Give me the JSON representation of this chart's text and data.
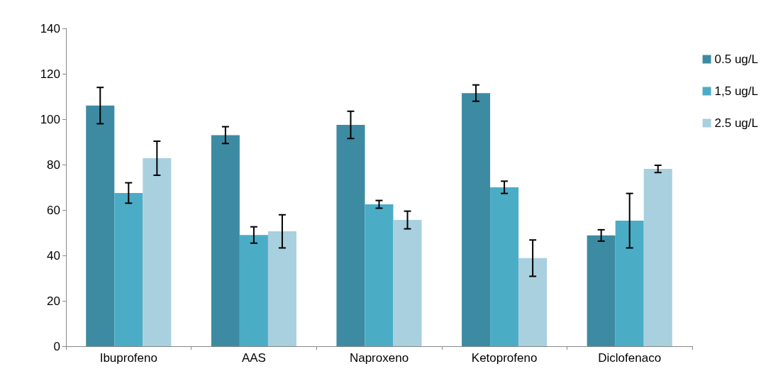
{
  "chart_data": {
    "type": "bar",
    "categories": [
      "Ibuprofeno",
      "AAS",
      "Naproxeno",
      "Ketoprofeno",
      "Diclofenaco"
    ],
    "series": [
      {
        "name": "0.5 ug/L",
        "color": "#3d8ba3",
        "values": [
          106,
          93,
          97.5,
          111.5,
          48.8
        ],
        "errors": [
          8,
          3.7,
          6,
          3.6,
          2.5
        ]
      },
      {
        "name": "1,5 ug/L",
        "color": "#4bacc6",
        "values": [
          67.5,
          49,
          62.5,
          70,
          55.3
        ],
        "errors": [
          4.5,
          3.6,
          1.7,
          2.7,
          12
        ]
      },
      {
        "name": "2.5 ug/L",
        "color": "#a8d0de",
        "values": [
          82.8,
          50.6,
          55.6,
          38.8,
          78.1
        ],
        "errors": [
          7.5,
          7.3,
          3.9,
          8,
          1.6
        ]
      }
    ],
    "ylim": [
      0,
      140
    ],
    "yticks": [
      0,
      20,
      40,
      60,
      80,
      100,
      120,
      140
    ],
    "grid": false,
    "legend": "right"
  }
}
